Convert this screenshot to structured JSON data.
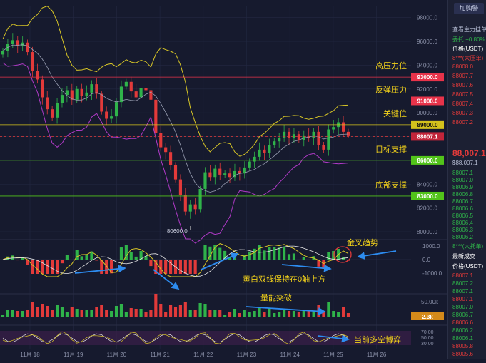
{
  "chart_data": {
    "type": "candlestick",
    "x_ticks": [
      "11月 18",
      "11月 19",
      "11月 20",
      "11月 21",
      "11月 22",
      "11月 23",
      "11月 24",
      "11月 25",
      "11月 26"
    ],
    "y_ticks": [
      98000.0,
      96000.0,
      94000.0,
      92000.0,
      90000.0,
      88000.0,
      86000.0,
      84000.0,
      82000.0,
      80000.0
    ],
    "ylim": [
      79700,
      99000
    ],
    "close_series": [
      95200,
      95800,
      96100,
      95600,
      95900,
      95100,
      93500,
      92800,
      91300,
      90300,
      89600,
      90800,
      91500,
      91900,
      91100,
      92000,
      91400,
      91700,
      92400,
      91600,
      90100,
      89500,
      89700,
      90900,
      92200,
      92600,
      91800,
      91300,
      92100,
      91900,
      91100,
      88300,
      87100,
      86700,
      85600,
      84400,
      83100,
      81700,
      82300,
      81900,
      83600,
      85000,
      84600,
      85300,
      84800,
      84900,
      84600,
      85100,
      84900,
      85400,
      85900,
      86300,
      86900,
      86600,
      87300,
      87600,
      87900,
      88400,
      87900,
      88200,
      87700,
      88100,
      87900,
      88400,
      87300,
      86900,
      88600,
      88800,
      89200,
      88400,
      88100
    ],
    "levels": [
      {
        "value": 93000,
        "label": "93000.0",
        "name": "高压力位",
        "color": "#e8334a"
      },
      {
        "value": 91000,
        "label": "91000.0",
        "name": "反弹压力",
        "color": "#e8334a"
      },
      {
        "value": 89000,
        "label": "89000.0",
        "name": "关键位",
        "color": "#d4c21c"
      },
      {
        "value": 86000,
        "label": "86000.0",
        "name": "目标支撑",
        "color": "#52c41a"
      },
      {
        "value": 83000,
        "label": "83000.0",
        "name": "底部支撑",
        "color": "#52c41a"
      }
    ],
    "current_price": {
      "value": 88007.1,
      "label": "88007.1"
    },
    "low_marker": {
      "value": 80600.0,
      "label": "80600.0"
    },
    "macd": {
      "y_ticks": [
        "1000.0",
        "0.0",
        "-1000.0"
      ],
      "annotations": [
        "金叉趋势",
        "黄白双线保持在0轴上方"
      ]
    },
    "volume": {
      "y_tick": "50.00k",
      "current_label": "2.3k",
      "annotation": "量能突破"
    },
    "oscillator": {
      "y_ticks": [
        "70.00",
        "50.00",
        "30.00"
      ],
      "annotation": "当前多空博弈"
    }
  },
  "sidebar": {
    "button": "加购警",
    "title": "查看主力挂单",
    "rows": [
      {
        "text": "委托  +0.80%",
        "tone": "side-bid"
      },
      {
        "text": "价格(USDT)",
        "tone": "side-hdr"
      },
      {
        "text": "8***(大压单)",
        "tone": "side-ask"
      },
      {
        "text": "88008.0",
        "tone": "side-ask"
      },
      {
        "text": "88007.7",
        "tone": "side-ask"
      },
      {
        "text": "88007.6",
        "tone": "side-ask"
      },
      {
        "text": "88007.5",
        "tone": "side-ask"
      },
      {
        "text": "88007.4",
        "tone": "side-ask"
      },
      {
        "text": "88007.3",
        "tone": "side-ask"
      },
      {
        "text": "88007.2",
        "tone": "side-ask"
      }
    ],
    "last_price": "88,007.1",
    "last_sub": "$88,007.1",
    "bids": [
      "88007.1",
      "88007.0",
      "88006.9",
      "88006.8",
      "88006.7",
      "88006.6",
      "88006.5",
      "88006.4",
      "88006.3",
      "88006.2"
    ],
    "bid_big": "8***(大托单)",
    "trades_title": "最新成交",
    "trades_hdr": "价格(USDT)",
    "trades": [
      {
        "text": "88007.1",
        "tone": "side-ask"
      },
      {
        "text": "88007.2",
        "tone": "side-bid"
      },
      {
        "text": "88007.1",
        "tone": "side-bid"
      },
      {
        "text": "88007.1",
        "tone": "side-ask"
      },
      {
        "text": "88007.0",
        "tone": "side-bid"
      },
      {
        "text": "88006.7",
        "tone": "side-bid"
      },
      {
        "text": "88006.6",
        "tone": "side-ask"
      },
      {
        "text": "88006.2",
        "tone": "side-bid"
      },
      {
        "text": "88006.1",
        "tone": "side-bid"
      },
      {
        "text": "88005.8",
        "tone": "side-ask"
      },
      {
        "text": "88005.6",
        "tone": "side-ask"
      },
      {
        "text": "88005.7",
        "tone": "side-bid"
      }
    ]
  },
  "colors": {
    "bg": "#161a2e",
    "grid": "#232842",
    "up": "#2fb34a",
    "down": "#e23a3a",
    "boll": "#d8c626",
    "boll_mid": "#9aa0b4",
    "boll_low": "#b13ac8",
    "annotation": "#f3d21a",
    "arrow": "#2d8cf0"
  }
}
